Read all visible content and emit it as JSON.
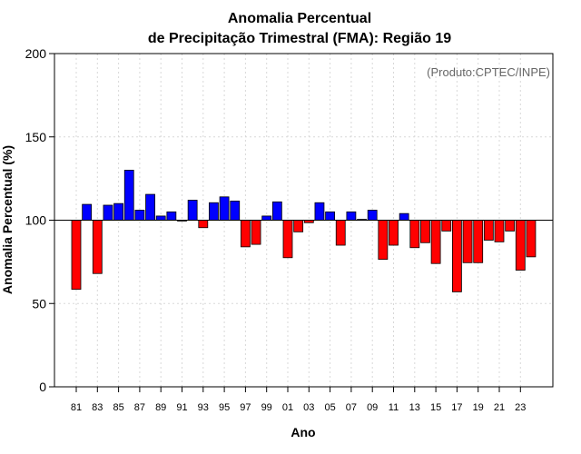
{
  "chart_data": {
    "type": "bar",
    "title_line1": "Anomalia Percentual",
    "title_line2": "de Precipitação Trimestral (FMA): Região 19",
    "xlabel": "Ano",
    "ylabel": "Anomalia Percentual (%)",
    "credit": "(Produto:CPTEC/INPE)",
    "baseline": 100,
    "ylim": [
      0,
      200
    ],
    "yticks": [
      0,
      50,
      100,
      150,
      200
    ],
    "categories": [
      "81",
      "82",
      "83",
      "84",
      "85",
      "86",
      "87",
      "88",
      "89",
      "90",
      "91",
      "92",
      "93",
      "94",
      "95",
      "96",
      "97",
      "98",
      "99",
      "00",
      "01",
      "02",
      "03",
      "04",
      "05",
      "06",
      "07",
      "08",
      "09",
      "10",
      "11",
      "12",
      "13",
      "14",
      "15",
      "16",
      "17",
      "18",
      "19",
      "20",
      "21",
      "22",
      "23",
      "24"
    ],
    "xtick_labels": [
      "81",
      "83",
      "85",
      "87",
      "89",
      "91",
      "93",
      "95",
      "97",
      "99",
      "01",
      "03",
      "05",
      "07",
      "09",
      "11",
      "13",
      "15",
      "17",
      "19",
      "21",
      "23"
    ],
    "values": [
      58.5,
      109.5,
      68,
      109,
      110,
      130,
      106,
      115.5,
      102.5,
      105,
      99.5,
      112,
      95.5,
      110.5,
      114,
      111.5,
      84,
      85.5,
      102.5,
      111,
      77.5,
      93,
      98.5,
      110.5,
      105,
      85,
      105,
      100.5,
      106,
      76.5,
      85,
      104,
      83.5,
      86.5,
      74,
      93.5,
      57,
      74.5,
      74.5,
      88,
      87,
      93.5,
      70,
      78
    ],
    "colors": {
      "above": "#0000ff",
      "below": "#ff0000",
      "baseline": "#000000",
      "grid": "#d8d8d8"
    }
  }
}
